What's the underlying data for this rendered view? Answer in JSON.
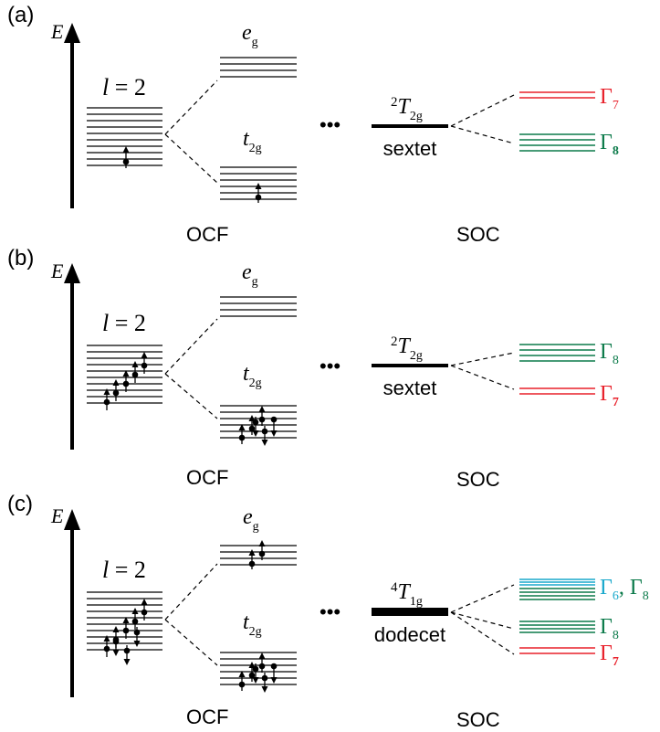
{
  "colors": {
    "line": "#000000",
    "gamma7": "#e8202a",
    "gamma8": "#0b7a4a",
    "gamma6": "#1aa9cc"
  },
  "panels": [
    {
      "tag": "(a)",
      "energy_label": "E",
      "l_label_l": "l",
      "l_label_eq": " = 2",
      "eg_main": "e",
      "eg_sub": "g",
      "t2g_main": "t",
      "t2g_sub": "2g",
      "ellipsis": "•••",
      "term_super": "2",
      "term_main": "T",
      "term_sub": "2g",
      "multiplet": "sextet",
      "left_caption": "OCF",
      "right_caption": "SOC",
      "levels": [
        {
          "gamma": "Γ",
          "sub": "7",
          "color_key": "gamma7",
          "bold_sub": false
        },
        {
          "gamma": "Γ",
          "sub": "8",
          "color_key": "gamma8",
          "bold_sub": true
        }
      ]
    },
    {
      "tag": "(b)",
      "energy_label": "E",
      "l_label_l": "l",
      "l_label_eq": " = 2",
      "eg_main": "e",
      "eg_sub": "g",
      "t2g_main": "t",
      "t2g_sub": "2g",
      "ellipsis": "•••",
      "term_super": "2",
      "term_main": "T",
      "term_sub": "2g",
      "multiplet": "sextet",
      "left_caption": "OCF",
      "right_caption": "SOC",
      "levels": [
        {
          "gamma": "Γ",
          "sub": "8",
          "color_key": "gamma8",
          "bold_sub": false
        },
        {
          "gamma": "Γ",
          "sub": "7",
          "color_key": "gamma7",
          "bold_sub": true
        }
      ]
    },
    {
      "tag": "(c)",
      "energy_label": "E",
      "l_label_l": "l",
      "l_label_eq": " = 2",
      "eg_main": "e",
      "eg_sub": "g",
      "t2g_main": "t",
      "t2g_sub": "2g",
      "ellipsis": "•••",
      "term_super": "4",
      "term_main": "T",
      "term_sub": "1g",
      "multiplet": "dodecet",
      "left_caption": "OCF",
      "right_caption": "SOC",
      "levels": [
        {
          "gamma": "Γ",
          "sub": "6",
          "sep": ", ",
          "gamma2": "Γ",
          "sub2": "8",
          "color_key": "gamma6",
          "color_key2": "gamma8"
        },
        {
          "gamma": "Γ",
          "sub": "8",
          "color_key": "gamma8",
          "bold_sub": false
        },
        {
          "gamma": "Γ",
          "sub": "7",
          "color_key": "gamma7",
          "bold_sub": true
        }
      ]
    }
  ]
}
